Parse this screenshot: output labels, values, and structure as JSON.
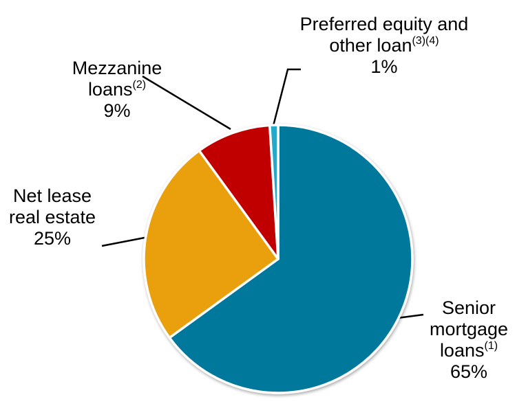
{
  "chart_data": {
    "type": "pie",
    "start_angle_deg": 0,
    "direction": "clockwise",
    "slices": [
      {
        "key": "senior",
        "lines": [
          "Senior",
          "mortgage",
          "loans"
        ],
        "sup": "(1)",
        "value": 65,
        "pct_label": "65%",
        "color": "#00789C"
      },
      {
        "key": "netlease",
        "lines": [
          "Net lease",
          "real estate"
        ],
        "sup": "",
        "value": 25,
        "pct_label": "25%",
        "color": "#EAA00A"
      },
      {
        "key": "mezz",
        "lines": [
          "Mezzanine",
          "loans"
        ],
        "sup": "(2)",
        "value": 9,
        "pct_label": "9%",
        "color": "#C00000"
      },
      {
        "key": "preferred",
        "lines": [
          "Preferred equity and",
          "other loan"
        ],
        "sup": "(3)(4)",
        "value": 1,
        "pct_label": "1%",
        "color": "#22AACC"
      }
    ]
  }
}
